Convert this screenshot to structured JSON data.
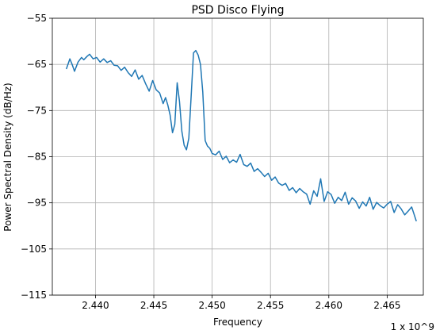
{
  "chart_data": {
    "type": "line",
    "title": "PSD Disco Flying",
    "xlabel": "Frequency",
    "ylabel": "Power Spectral Density (dB/Hz)",
    "x_offset_label": "1 x 10^9",
    "xlim": [
      2.4363,
      2.4681
    ],
    "ylim": [
      -115,
      -55
    ],
    "x_ticks": [
      2.44,
      2.445,
      2.45,
      2.455,
      2.46,
      2.465
    ],
    "x_tick_labels": [
      "2.440",
      "2.445",
      "2.450",
      "2.455",
      "2.460",
      "2.465"
    ],
    "y_ticks": [
      -55,
      -65,
      -75,
      -85,
      -95,
      -105,
      -115
    ],
    "y_tick_labels": [
      "−55",
      "−65",
      "−75",
      "−85",
      "−95",
      "−105",
      "−115"
    ],
    "grid": true,
    "colors": {
      "series": "#1f77b4"
    },
    "series": [
      {
        "x": [
          2.4375,
          2.4378,
          2.438,
          2.4382,
          2.4385,
          2.4388,
          2.439,
          2.4393,
          2.4395,
          2.4398,
          2.4401,
          2.4404,
          2.4407,
          2.441,
          2.4413,
          2.4416,
          2.4419,
          2.4422,
          2.4425,
          2.4428,
          2.4431,
          2.4434,
          2.4437,
          2.444,
          2.4443,
          2.4446,
          2.4449,
          2.4452,
          2.4455,
          2.4458,
          2.446,
          2.4462,
          2.4464,
          2.4466,
          2.4468,
          2.447,
          2.4472,
          2.4474,
          2.4476,
          2.4478,
          2.448,
          2.4482,
          2.4484,
          2.4486,
          2.4488,
          2.449,
          2.4492,
          2.4494,
          2.4496,
          2.4498,
          2.45,
          2.4503,
          2.4506,
          2.4509,
          2.4512,
          2.4515,
          2.4518,
          2.4521,
          2.4524,
          2.4527,
          2.453,
          2.4533,
          2.4536,
          2.4539,
          2.4542,
          2.4545,
          2.4548,
          2.4551,
          2.4554,
          2.4557,
          2.456,
          2.4563,
          2.4566,
          2.4569,
          2.4572,
          2.4575,
          2.4578,
          2.4581,
          2.4584,
          2.4587,
          2.459,
          2.4593,
          2.4596,
          2.4599,
          2.4602,
          2.4605,
          2.4608,
          2.4611,
          2.4614,
          2.4617,
          2.462,
          2.4623,
          2.4626,
          2.4629,
          2.4632,
          2.4635,
          2.4638,
          2.4641,
          2.4644,
          2.4647,
          2.465,
          2.4653,
          2.4656,
          2.4659,
          2.4662,
          2.4665,
          2.4668,
          2.4671,
          2.4673,
          2.4675
        ],
        "values": [
          -66,
          -63.8,
          -65,
          -66.5,
          -64.5,
          -63.5,
          -64,
          -63.2,
          -62.8,
          -63.8,
          -63.5,
          -64.5,
          -63.8,
          -64.6,
          -64.2,
          -65.2,
          -65.3,
          -66.3,
          -65.6,
          -66.8,
          -67.6,
          -66.2,
          -68.2,
          -67.4,
          -69.2,
          -70.8,
          -68.5,
          -70.5,
          -71.2,
          -73.5,
          -72.2,
          -73.8,
          -76,
          -79.8,
          -78,
          -69,
          -73,
          -79.5,
          -82.5,
          -83.5,
          -81,
          -72,
          -62.5,
          -62,
          -63,
          -65,
          -71,
          -81.5,
          -82.7,
          -83.2,
          -84.3,
          -84.6,
          -83.8,
          -85.6,
          -84.9,
          -86.3,
          -85.7,
          -86.2,
          -84.5,
          -86.7,
          -87.1,
          -86.4,
          -88.2,
          -87.6,
          -88.4,
          -89.3,
          -88.6,
          -90.1,
          -89.4,
          -90.7,
          -91.2,
          -90.8,
          -92.3,
          -91.7,
          -92.8,
          -91.9,
          -92.6,
          -93.1,
          -95.3,
          -92.4,
          -93.6,
          -89.8,
          -94.7,
          -92.6,
          -93.2,
          -95.1,
          -93.8,
          -94.5,
          -92.7,
          -95.3,
          -93.9,
          -94.6,
          -96.2,
          -94.8,
          -95.7,
          -93.8,
          -96.4,
          -94.9,
          -95.6,
          -96.1,
          -95.3,
          -94.7,
          -97.1,
          -95.4,
          -96.3,
          -97.6,
          -96.8,
          -95.9,
          -97.4,
          -99
        ]
      }
    ]
  }
}
